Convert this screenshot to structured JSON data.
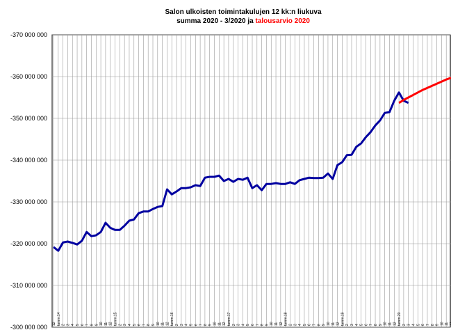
{
  "chart_data": {
    "type": "line",
    "title": [
      "Salon ulkoisten toimintakulujen 12 kk:n liukuva",
      "summa 2020 - 3/2020 ja",
      "talousarvio 2020"
    ],
    "categories": [
      "12",
      "tamm.14",
      "2",
      "3",
      "4",
      "5",
      "6",
      "7",
      "8",
      "9",
      "10",
      "11",
      "12",
      "tamm.15",
      "2",
      "3",
      "4",
      "5",
      "6",
      "7",
      "8",
      "9",
      "10",
      "11",
      "12",
      "tamm.16",
      "2",
      "3",
      "4",
      "5",
      "6",
      "7",
      "8",
      "9",
      "10",
      "11",
      "12",
      "tamm.17",
      "2",
      "3",
      "4",
      "5",
      "6",
      "7",
      "8",
      "9",
      "10",
      "11",
      "12",
      "tamm.18",
      "2",
      "3",
      "4",
      "5",
      "6",
      "7",
      "8",
      "9",
      "10",
      "11",
      "12",
      "tamm.19",
      "2",
      "3",
      "4",
      "5",
      "6",
      "7",
      "8",
      "9",
      "10",
      "11",
      "12",
      "tamm.20",
      "2",
      "3",
      "4",
      "5",
      "6",
      "7",
      "8",
      "9",
      "10",
      "11",
      "12"
    ],
    "series": [
      {
        "color": "#0000a0",
        "values": [
          -319200000,
          -318300000,
          -320300000,
          -320500000,
          -320200000,
          -319800000,
          -320700000,
          -322800000,
          -321800000,
          -322000000,
          -322800000,
          -325000000,
          -323800000,
          -323300000,
          -323300000,
          -324300000,
          -325500000,
          -325800000,
          -327300000,
          -327700000,
          -327700000,
          -328300000,
          -328800000,
          -329000000,
          -333000000,
          -331800000,
          -332500000,
          -333300000,
          -333300000,
          -333500000,
          -334000000,
          -333800000,
          -335800000,
          -336000000,
          -336000000,
          -336300000,
          -335000000,
          -335500000,
          -334800000,
          -335500000,
          -335300000,
          -335800000,
          -333300000,
          -334000000,
          -332800000,
          -334300000,
          -334300000,
          -334500000,
          -334300000,
          -334300000,
          -334700000,
          -334300000,
          -335200000,
          -335500000,
          -335800000,
          -335700000,
          -335700000,
          -335800000,
          -336800000,
          -335500000,
          -338800000,
          -339500000,
          -341200000,
          -341300000,
          -343200000,
          -344000000,
          -345500000,
          -346700000,
          -348300000,
          -349500000,
          -351300000,
          -351500000,
          -354200000,
          -356200000,
          -354200000,
          -353700000,
          null,
          null,
          null,
          null,
          null,
          null,
          null,
          null,
          null
        ]
      },
      {
        "color": "#ff0000",
        "values": [
          null,
          null,
          null,
          null,
          null,
          null,
          null,
          null,
          null,
          null,
          null,
          null,
          null,
          null,
          null,
          null,
          null,
          null,
          null,
          null,
          null,
          null,
          null,
          null,
          null,
          null,
          null,
          null,
          null,
          null,
          null,
          null,
          null,
          null,
          null,
          null,
          null,
          null,
          null,
          null,
          null,
          null,
          null,
          null,
          null,
          null,
          null,
          null,
          null,
          null,
          null,
          null,
          null,
          null,
          null,
          null,
          null,
          null,
          null,
          null,
          null,
          null,
          null,
          null,
          null,
          null,
          null,
          null,
          null,
          null,
          null,
          null,
          null,
          -353700000,
          -354400000,
          -355000000,
          -355600000,
          -356200000,
          -356800000,
          -357300000,
          -357800000,
          -358300000,
          -358800000,
          -359300000,
          -359700000
        ]
      }
    ],
    "ylim": [
      -300000000,
      -370000000
    ],
    "yticks": [
      {
        "value": -370000000,
        "label": "-370 000 000"
      },
      {
        "value": -360000000,
        "label": "-360 000 000"
      },
      {
        "value": -350000000,
        "label": "-350 000 000"
      },
      {
        "value": -340000000,
        "label": "-340 000 000"
      },
      {
        "value": -330000000,
        "label": "-330 000 000"
      },
      {
        "value": -320000000,
        "label": "-320 000 000"
      },
      {
        "value": -310000000,
        "label": "-310 000 000"
      },
      {
        "value": -300000000,
        "label": "-300 000 000"
      }
    ],
    "grid": true,
    "title_color": "#ff0000"
  }
}
